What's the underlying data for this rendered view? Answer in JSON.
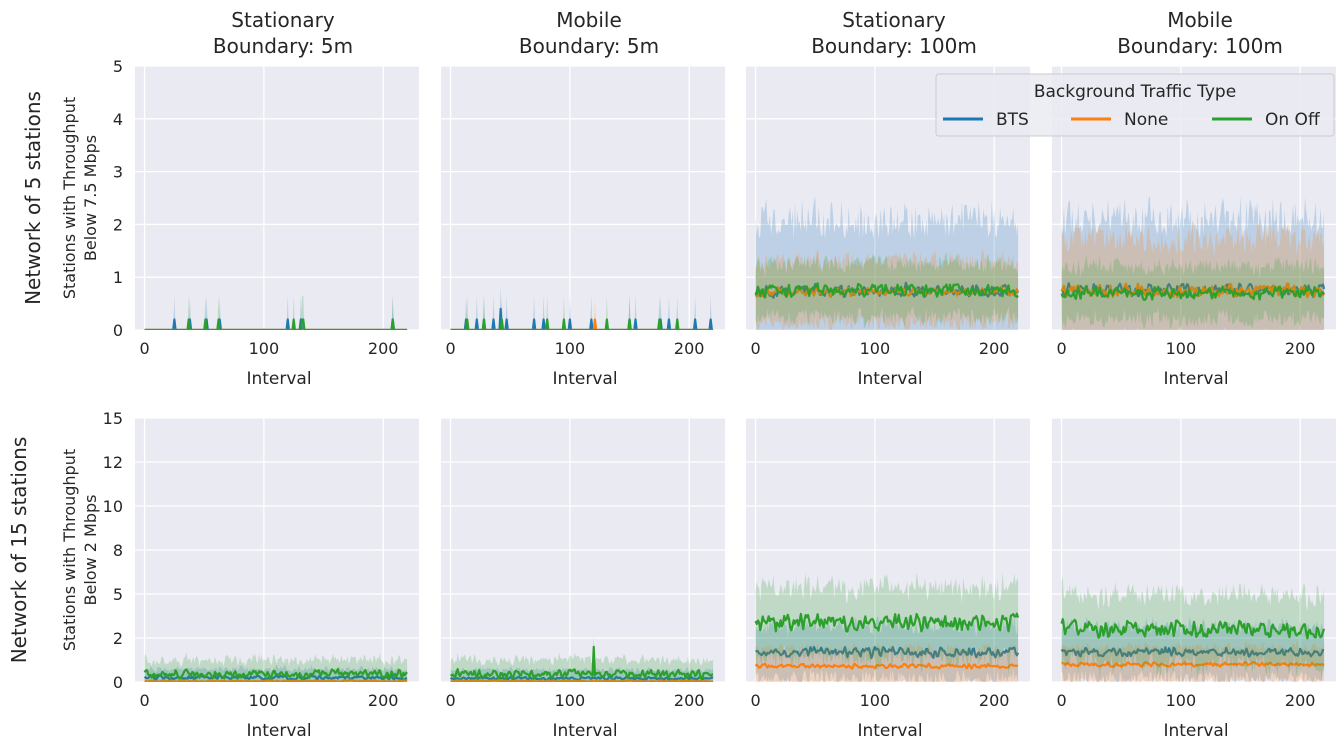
{
  "figure": {
    "row_labels": [
      "Network of 5 stations",
      "Network of 15 stations"
    ],
    "legend": {
      "title": "Background Traffic Type",
      "entries": [
        {
          "name": "BTS",
          "color": "#1f77b4"
        },
        {
          "name": "None",
          "color": "#ff7f0e"
        },
        {
          "name": "On Off",
          "color": "#2ca02c"
        }
      ],
      "placement": "upper-right of row 1, spanning columns 3-4"
    },
    "style": {
      "background": "#eaeaf2",
      "grid": true,
      "grid_color": "#ffffff"
    }
  },
  "chart_data": [
    {
      "type": "line",
      "row": 0,
      "col": 0,
      "title_lines": [
        "Stationary",
        "Boundary: 5m"
      ],
      "xlabel": "Interval",
      "ylabel_lines": [
        "Stations with Throughput",
        "Below 7.5 Mbps"
      ],
      "xlim": [
        -8,
        230
      ],
      "ylim": [
        0,
        5
      ],
      "xticks": [
        "0",
        "100",
        "200"
      ],
      "yticks": [
        "0",
        "1",
        "2",
        "3",
        "4",
        "5"
      ],
      "x_range": [
        0,
        220
      ],
      "series": [
        {
          "name": "BTS",
          "baseline": 0.0,
          "noise": 0.0,
          "band": 0.0,
          "spikes": [
            [
              25,
              0.2
            ],
            [
              38,
              0.2
            ],
            [
              52,
              0.2
            ],
            [
              63,
              0.2
            ],
            [
              120,
              0.2
            ],
            [
              131,
              0.2
            ],
            [
              208,
              0.2
            ]
          ],
          "spike_band": 0.45
        },
        {
          "name": "None",
          "baseline": 0.0,
          "noise": 0.0,
          "band": 0.0,
          "spikes": [],
          "spike_band": 0.0
        },
        {
          "name": "On Off",
          "baseline": 0.0,
          "noise": 0.0,
          "band": 0.0,
          "spikes": [
            [
              37,
              0.2
            ],
            [
              51,
              0.2
            ],
            [
              62,
              0.2
            ],
            [
              125,
              0.2
            ],
            [
              132,
              0.2
            ],
            [
              133,
              0.2
            ],
            [
              208,
              0.2
            ]
          ],
          "spike_band": 0.45
        }
      ]
    },
    {
      "type": "line",
      "row": 0,
      "col": 1,
      "title_lines": [
        "Mobile",
        "Boundary: 5m"
      ],
      "xlabel": "Interval",
      "ylabel_lines": [],
      "xlim": [
        -8,
        230
      ],
      "ylim": [
        0,
        5
      ],
      "xticks": [
        "0",
        "100",
        "200"
      ],
      "yticks": [],
      "x_range": [
        0,
        220
      ],
      "series": [
        {
          "name": "BTS",
          "baseline": 0.0,
          "noise": 0.0,
          "band": 0.0,
          "spikes": [
            [
              13,
              0.2
            ],
            [
              22,
              0.2
            ],
            [
              28,
              0.2
            ],
            [
              36,
              0.2
            ],
            [
              42,
              0.4
            ],
            [
              47,
              0.2
            ],
            [
              70,
              0.2
            ],
            [
              78,
              0.2
            ],
            [
              100,
              0.2
            ],
            [
              118,
              0.2
            ],
            [
              150,
              0.2
            ],
            [
              155,
              0.2
            ],
            [
              176,
              0.2
            ],
            [
              183,
              0.2
            ],
            [
              205,
              0.2
            ],
            [
              218,
              0.2
            ]
          ],
          "spike_band": 0.45
        },
        {
          "name": "None",
          "baseline": 0.0,
          "noise": 0.0,
          "band": 0.0,
          "spikes": [
            [
              121,
              0.2
            ]
          ],
          "spike_band": 0.4
        },
        {
          "name": "On Off",
          "baseline": 0.0,
          "noise": 0.0,
          "band": 0.0,
          "spikes": [
            [
              14,
              0.2
            ],
            [
              28,
              0.2
            ],
            [
              43,
              0.2
            ],
            [
              81,
              0.2
            ],
            [
              95,
              0.2
            ],
            [
              131,
              0.2
            ],
            [
              150,
              0.2
            ],
            [
              175,
              0.2
            ],
            [
              190,
              0.2
            ]
          ],
          "spike_band": 0.45
        }
      ]
    },
    {
      "type": "line",
      "row": 0,
      "col": 2,
      "title_lines": [
        "Stationary",
        "Boundary: 100m"
      ],
      "xlabel": "Interval",
      "ylabel_lines": [],
      "xlim": [
        -8,
        230
      ],
      "ylim": [
        0,
        5
      ],
      "xticks": [
        "0",
        "100",
        "200"
      ],
      "yticks": [],
      "x_range": [
        0,
        220
      ],
      "series": [
        {
          "name": "BTS",
          "baseline": 0.75,
          "noise": 0.15,
          "band": 1.35,
          "spikes": [],
          "spike_band": 0.0
        },
        {
          "name": "None",
          "baseline": 0.72,
          "noise": 0.1,
          "band": 0.6,
          "spikes": [],
          "spike_band": 0.0
        },
        {
          "name": "On Off",
          "baseline": 0.75,
          "noise": 0.15,
          "band": 0.5,
          "spikes": [],
          "spike_band": 0.0
        }
      ]
    },
    {
      "type": "line",
      "row": 0,
      "col": 3,
      "title_lines": [
        "Mobile",
        "Boundary: 100m"
      ],
      "xlabel": "Interval",
      "ylabel_lines": [],
      "xlim": [
        -8,
        230
      ],
      "ylim": [
        0,
        5
      ],
      "xticks": [
        "0",
        "100",
        "200"
      ],
      "yticks": [],
      "x_range": [
        0,
        220
      ],
      "series": [
        {
          "name": "BTS",
          "baseline": 0.75,
          "noise": 0.15,
          "band": 1.35,
          "spikes": [],
          "spike_band": 0.0
        },
        {
          "name": "None",
          "baseline": 0.75,
          "noise": 0.15,
          "band": 1.0,
          "spikes": [],
          "spike_band": 0.0
        },
        {
          "name": "On Off",
          "baseline": 0.7,
          "noise": 0.15,
          "band": 0.5,
          "spikes": [],
          "spike_band": 0.0
        }
      ]
    },
    {
      "type": "line",
      "row": 1,
      "col": 0,
      "title_lines": [],
      "xlabel": "Interval",
      "ylabel_lines": [
        "Stations with Throughput",
        "Below 2 Mbps"
      ],
      "xlim": [
        -8,
        230
      ],
      "ylim": [
        0,
        15
      ],
      "xticks": [
        "0",
        "100",
        "200"
      ],
      "yticks": [
        "0",
        "2",
        "5",
        "8",
        "10",
        "12",
        "15"
      ],
      "x_range": [
        0,
        220
      ],
      "series": [
        {
          "name": "BTS",
          "baseline": 0.25,
          "noise": 0.15,
          "band": 0.5,
          "spikes": [],
          "spike_band": 0.0
        },
        {
          "name": "None",
          "baseline": 0.05,
          "noise": 0.05,
          "band": 0.1,
          "spikes": [],
          "spike_band": 0.0
        },
        {
          "name": "On Off",
          "baseline": 0.45,
          "noise": 0.3,
          "band": 0.8,
          "spikes": [],
          "spike_band": 0.0
        }
      ]
    },
    {
      "type": "line",
      "row": 1,
      "col": 1,
      "title_lines": [],
      "xlabel": "Interval",
      "ylabel_lines": [],
      "xlim": [
        -8,
        230
      ],
      "ylim": [
        0,
        15
      ],
      "xticks": [
        "0",
        "100",
        "200"
      ],
      "yticks": [],
      "x_range": [
        0,
        220
      ],
      "series": [
        {
          "name": "BTS",
          "baseline": 0.2,
          "noise": 0.1,
          "band": 0.5,
          "spikes": [],
          "spike_band": 0.0
        },
        {
          "name": "None",
          "baseline": 0.05,
          "noise": 0.05,
          "band": 0.1,
          "spikes": [],
          "spike_band": 0.0
        },
        {
          "name": "On Off",
          "baseline": 0.45,
          "noise": 0.3,
          "band": 0.8,
          "spikes": [
            [
              120,
              2.0
            ]
          ],
          "spike_band": 0.6
        }
      ]
    },
    {
      "type": "line",
      "row": 1,
      "col": 2,
      "title_lines": [],
      "xlabel": "Interval",
      "ylabel_lines": [],
      "xlim": [
        -8,
        230
      ],
      "ylim": [
        0,
        15
      ],
      "xticks": [
        "0",
        "100",
        "200"
      ],
      "yticks": [],
      "x_range": [
        0,
        220
      ],
      "series": [
        {
          "name": "BTS",
          "baseline": 1.7,
          "noise": 0.35,
          "band": 1.5,
          "spikes": [],
          "spike_band": 0.0
        },
        {
          "name": "None",
          "baseline": 0.9,
          "noise": 0.15,
          "band": 1.0,
          "spikes": [],
          "spike_band": 0.0
        },
        {
          "name": "On Off",
          "baseline": 3.4,
          "noise": 0.6,
          "band": 2.0,
          "spikes": [],
          "spike_band": 0.0
        }
      ]
    },
    {
      "type": "line",
      "row": 1,
      "col": 3,
      "title_lines": [],
      "xlabel": "Interval",
      "ylabel_lines": [],
      "xlim": [
        -8,
        230
      ],
      "ylim": [
        0,
        15
      ],
      "xticks": [
        "0",
        "100",
        "200"
      ],
      "yticks": [],
      "x_range": [
        0,
        220
      ],
      "series": [
        {
          "name": "BTS",
          "baseline": 1.7,
          "noise": 0.3,
          "band": 1.5,
          "spikes": [],
          "spike_band": 0.0
        },
        {
          "name": "None",
          "baseline": 1.0,
          "noise": 0.15,
          "band": 1.0,
          "spikes": [],
          "spike_band": 0.0
        },
        {
          "name": "On Off",
          "baseline": 3.0,
          "noise": 0.6,
          "band": 2.0,
          "spikes": [],
          "spike_band": 0.0
        }
      ]
    }
  ]
}
